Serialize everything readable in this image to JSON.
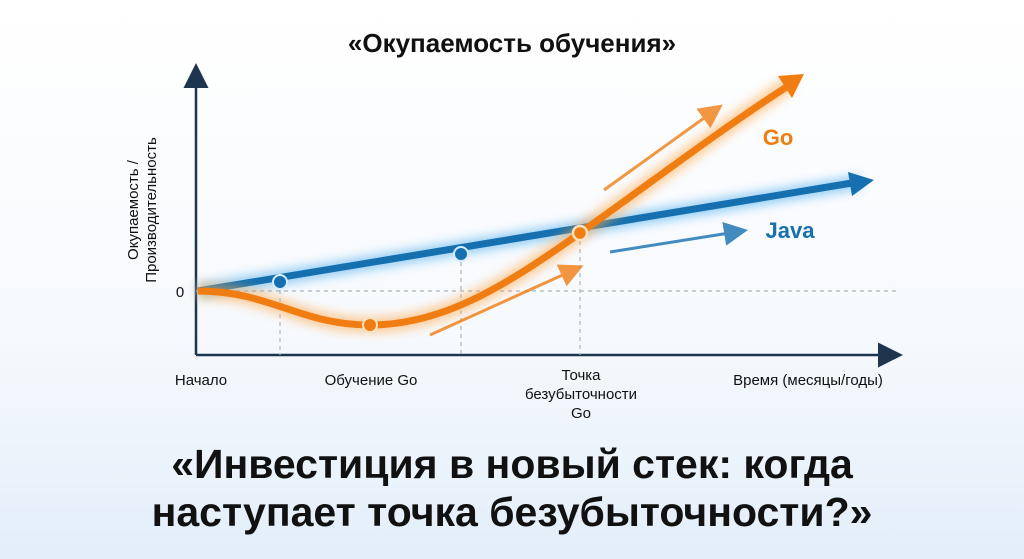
{
  "title": "«Окупаемость обучения»",
  "y_axis_label": [
    "Окупаемость /",
    "Производительность"
  ],
  "zero_label": "0",
  "x_labels": [
    "Начало",
    "Обучение Go",
    [
      "Точка",
      "безубыточности",
      "Go"
    ],
    "Время (месяцы/годы)"
  ],
  "series_labels": {
    "go": "Go",
    "java": "Java"
  },
  "headline": [
    "«Инвестиция в новый стек: когда",
    "наступает точка безубыточности?»"
  ]
}
